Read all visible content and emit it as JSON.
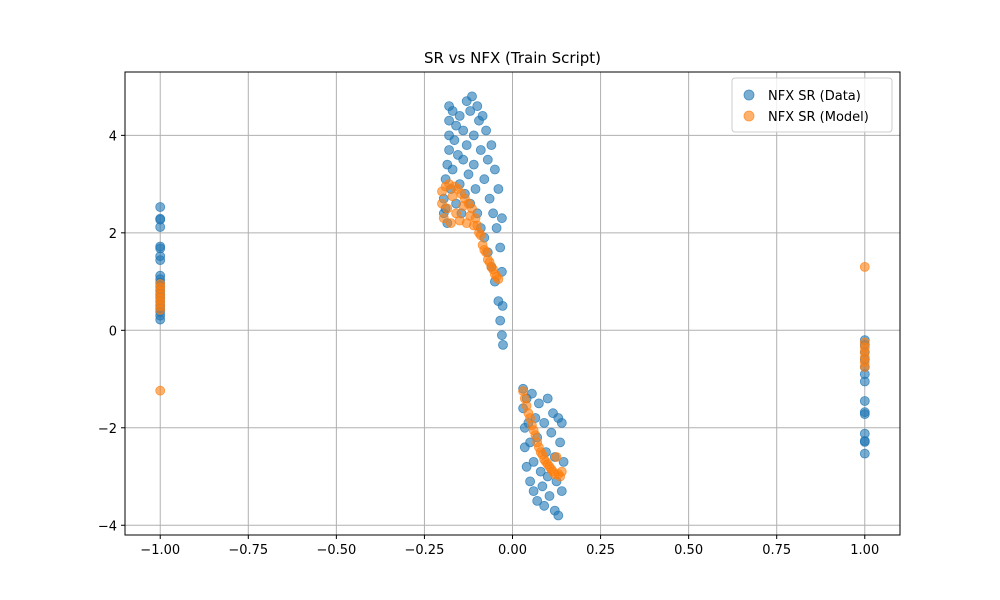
{
  "chart_data": {
    "type": "scatter",
    "title": "SR vs NFX (Train Script)",
    "xlabel": "",
    "ylabel": "",
    "xlim": [
      -1.1,
      1.1
    ],
    "ylim": [
      -4.2,
      5.3
    ],
    "grid": true,
    "legend_position": "top-right",
    "x_ticks": [
      {
        "value": -1.0,
        "label": "−1.00"
      },
      {
        "value": -0.75,
        "label": "−0.75"
      },
      {
        "value": -0.5,
        "label": "−0.50"
      },
      {
        "value": -0.25,
        "label": "−0.25"
      },
      {
        "value": 0.0,
        "label": "0.00"
      },
      {
        "value": 0.25,
        "label": "0.25"
      },
      {
        "value": 0.5,
        "label": "0.50"
      },
      {
        "value": 0.75,
        "label": "0.75"
      },
      {
        "value": 1.0,
        "label": "1.00"
      }
    ],
    "y_ticks": [
      {
        "value": -4,
        "label": "−4"
      },
      {
        "value": -2,
        "label": "−2"
      },
      {
        "value": 0,
        "label": "0"
      },
      {
        "value": 2,
        "label": "2"
      },
      {
        "value": 4,
        "label": "4"
      }
    ],
    "series": [
      {
        "name": "NFX SR (Data)",
        "color": "#1f77b4",
        "points": [
          [
            -1.0,
            2.53
          ],
          [
            -1.0,
            2.29
          ],
          [
            -1.0,
            2.27
          ],
          [
            -1.0,
            2.12
          ],
          [
            -1.0,
            1.72
          ],
          [
            -1.0,
            1.68
          ],
          [
            -1.0,
            1.52
          ],
          [
            -1.0,
            1.44
          ],
          [
            -1.0,
            1.12
          ],
          [
            -1.0,
            1.05
          ],
          [
            -1.0,
            0.98
          ],
          [
            -1.0,
            0.9
          ],
          [
            -1.0,
            0.82
          ],
          [
            -1.0,
            0.75
          ],
          [
            -1.0,
            0.68
          ],
          [
            -1.0,
            0.6
          ],
          [
            -1.0,
            0.52
          ],
          [
            -1.0,
            0.45
          ],
          [
            -1.0,
            0.38
          ],
          [
            -1.0,
            0.3
          ],
          [
            -1.0,
            0.22
          ],
          [
            -0.195,
            2.4
          ],
          [
            -0.195,
            2.7
          ],
          [
            -0.19,
            3.1
          ],
          [
            -0.19,
            2.5
          ],
          [
            -0.185,
            3.4
          ],
          [
            -0.185,
            2.2
          ],
          [
            -0.18,
            3.7
          ],
          [
            -0.18,
            4.0
          ],
          [
            -0.18,
            4.3
          ],
          [
            -0.18,
            4.6
          ],
          [
            -0.175,
            2.9
          ],
          [
            -0.17,
            3.3
          ],
          [
            -0.17,
            4.5
          ],
          [
            -0.165,
            3.9
          ],
          [
            -0.16,
            4.2
          ],
          [
            -0.16,
            2.6
          ],
          [
            -0.155,
            3.6
          ],
          [
            -0.15,
            4.4
          ],
          [
            -0.15,
            3.0
          ],
          [
            -0.145,
            2.4
          ],
          [
            -0.14,
            4.1
          ],
          [
            -0.14,
            3.5
          ],
          [
            -0.135,
            2.8
          ],
          [
            -0.13,
            4.7
          ],
          [
            -0.13,
            3.8
          ],
          [
            -0.125,
            3.2
          ],
          [
            -0.12,
            4.5
          ],
          [
            -0.12,
            2.6
          ],
          [
            -0.115,
            4.8
          ],
          [
            -0.11,
            4.0
          ],
          [
            -0.11,
            3.4
          ],
          [
            -0.105,
            2.9
          ],
          [
            -0.1,
            4.6
          ],
          [
            -0.1,
            2.4
          ],
          [
            -0.095,
            4.3
          ],
          [
            -0.09,
            3.7
          ],
          [
            -0.09,
            2.1
          ],
          [
            -0.085,
            4.4
          ],
          [
            -0.08,
            3.1
          ],
          [
            -0.08,
            1.9
          ],
          [
            -0.075,
            4.1
          ],
          [
            -0.07,
            3.5
          ],
          [
            -0.07,
            1.6
          ],
          [
            -0.065,
            2.7
          ],
          [
            -0.06,
            3.8
          ],
          [
            -0.06,
            1.3
          ],
          [
            -0.055,
            2.4
          ],
          [
            -0.05,
            3.3
          ],
          [
            -0.05,
            1.0
          ],
          [
            -0.045,
            2.1
          ],
          [
            -0.04,
            2.9
          ],
          [
            -0.04,
            0.6
          ],
          [
            -0.035,
            1.7
          ],
          [
            -0.035,
            0.2
          ],
          [
            -0.03,
            2.3
          ],
          [
            -0.03,
            1.2
          ],
          [
            -0.03,
            -0.1
          ],
          [
            -0.028,
            0.5
          ],
          [
            -0.027,
            -0.3
          ],
          [
            0.03,
            -1.2
          ],
          [
            0.03,
            -1.6
          ],
          [
            0.035,
            -2.0
          ],
          [
            0.035,
            -2.4
          ],
          [
            0.04,
            -1.4
          ],
          [
            0.04,
            -2.8
          ],
          [
            0.045,
            -1.9
          ],
          [
            0.05,
            -3.1
          ],
          [
            0.05,
            -2.3
          ],
          [
            0.055,
            -1.3
          ],
          [
            0.06,
            -2.7
          ],
          [
            0.06,
            -3.3
          ],
          [
            0.065,
            -1.8
          ],
          [
            0.07,
            -2.2
          ],
          [
            0.07,
            -3.5
          ],
          [
            0.075,
            -1.5
          ],
          [
            0.08,
            -2.9
          ],
          [
            0.085,
            -3.2
          ],
          [
            0.09,
            -1.9
          ],
          [
            0.09,
            -3.6
          ],
          [
            0.095,
            -2.5
          ],
          [
            0.1,
            -1.4
          ],
          [
            0.1,
            -3.0
          ],
          [
            0.105,
            -3.4
          ],
          [
            0.11,
            -2.1
          ],
          [
            0.115,
            -1.7
          ],
          [
            0.12,
            -3.7
          ],
          [
            0.12,
            -2.6
          ],
          [
            0.125,
            -3.1
          ],
          [
            0.13,
            -1.8
          ],
          [
            0.13,
            -3.8
          ],
          [
            0.135,
            -2.3
          ],
          [
            0.14,
            -1.9
          ],
          [
            0.14,
            -3.3
          ],
          [
            0.145,
            -2.7
          ],
          [
            1.0,
            -0.2
          ],
          [
            1.0,
            -0.3
          ],
          [
            1.0,
            -0.45
          ],
          [
            1.0,
            -0.6
          ],
          [
            1.0,
            -0.75
          ],
          [
            1.0,
            -0.9
          ],
          [
            1.0,
            -1.05
          ],
          [
            1.0,
            -1.45
          ],
          [
            1.0,
            -1.68
          ],
          [
            1.0,
            -1.72
          ],
          [
            1.0,
            -2.12
          ],
          [
            1.0,
            -2.27
          ],
          [
            1.0,
            -2.29
          ],
          [
            1.0,
            -2.53
          ]
        ]
      },
      {
        "name": "NFX SR (Model)",
        "color": "#ff7f0e",
        "points": [
          [
            -1.0,
            0.95
          ],
          [
            -1.0,
            0.88
          ],
          [
            -1.0,
            0.8
          ],
          [
            -1.0,
            0.72
          ],
          [
            -1.0,
            0.65
          ],
          [
            -1.0,
            0.58
          ],
          [
            -1.0,
            0.5
          ],
          [
            -1.0,
            0.42
          ],
          [
            -1.0,
            -1.24
          ],
          [
            -0.2,
            2.85
          ],
          [
            -0.2,
            2.6
          ],
          [
            -0.195,
            2.3
          ],
          [
            -0.19,
            2.95
          ],
          [
            -0.185,
            2.5
          ],
          [
            -0.18,
            3.0
          ],
          [
            -0.175,
            2.2
          ],
          [
            -0.17,
            2.75
          ],
          [
            -0.165,
            2.95
          ],
          [
            -0.16,
            2.4
          ],
          [
            -0.155,
            2.9
          ],
          [
            -0.15,
            2.25
          ],
          [
            -0.145,
            2.8
          ],
          [
            -0.14,
            2.55
          ],
          [
            -0.135,
            2.7
          ],
          [
            -0.13,
            2.2
          ],
          [
            -0.125,
            2.6
          ],
          [
            -0.12,
            2.35
          ],
          [
            -0.115,
            2.5
          ],
          [
            -0.11,
            2.15
          ],
          [
            -0.105,
            2.3
          ],
          [
            -0.1,
            2.15
          ],
          [
            -0.095,
            2.0
          ],
          [
            -0.09,
            1.95
          ],
          [
            -0.085,
            1.75
          ],
          [
            -0.08,
            1.65
          ],
          [
            -0.075,
            1.6
          ],
          [
            -0.07,
            1.45
          ],
          [
            -0.065,
            1.4
          ],
          [
            -0.06,
            1.3
          ],
          [
            -0.055,
            1.25
          ],
          [
            -0.05,
            1.15
          ],
          [
            -0.045,
            1.1
          ],
          [
            -0.04,
            1.05
          ],
          [
            0.03,
            -1.25
          ],
          [
            0.035,
            -1.4
          ],
          [
            0.04,
            -1.55
          ],
          [
            0.045,
            -1.7
          ],
          [
            0.05,
            -1.8
          ],
          [
            0.055,
            -1.95
          ],
          [
            0.06,
            -2.05
          ],
          [
            0.065,
            -2.15
          ],
          [
            0.07,
            -2.3
          ],
          [
            0.075,
            -2.4
          ],
          [
            0.08,
            -2.5
          ],
          [
            0.085,
            -2.55
          ],
          [
            0.09,
            -2.65
          ],
          [
            0.095,
            -2.7
          ],
          [
            0.1,
            -2.75
          ],
          [
            0.105,
            -2.8
          ],
          [
            0.11,
            -2.85
          ],
          [
            0.115,
            -2.9
          ],
          [
            0.12,
            -2.95
          ],
          [
            0.125,
            -2.6
          ],
          [
            0.13,
            -2.95
          ],
          [
            0.135,
            -3.0
          ],
          [
            0.14,
            -2.9
          ],
          [
            1.0,
            1.3
          ],
          [
            1.0,
            -0.25
          ],
          [
            1.0,
            -0.35
          ],
          [
            1.0,
            -0.45
          ],
          [
            1.0,
            -0.55
          ],
          [
            1.0,
            -0.65
          ],
          [
            1.0,
            -0.75
          ]
        ]
      }
    ]
  }
}
